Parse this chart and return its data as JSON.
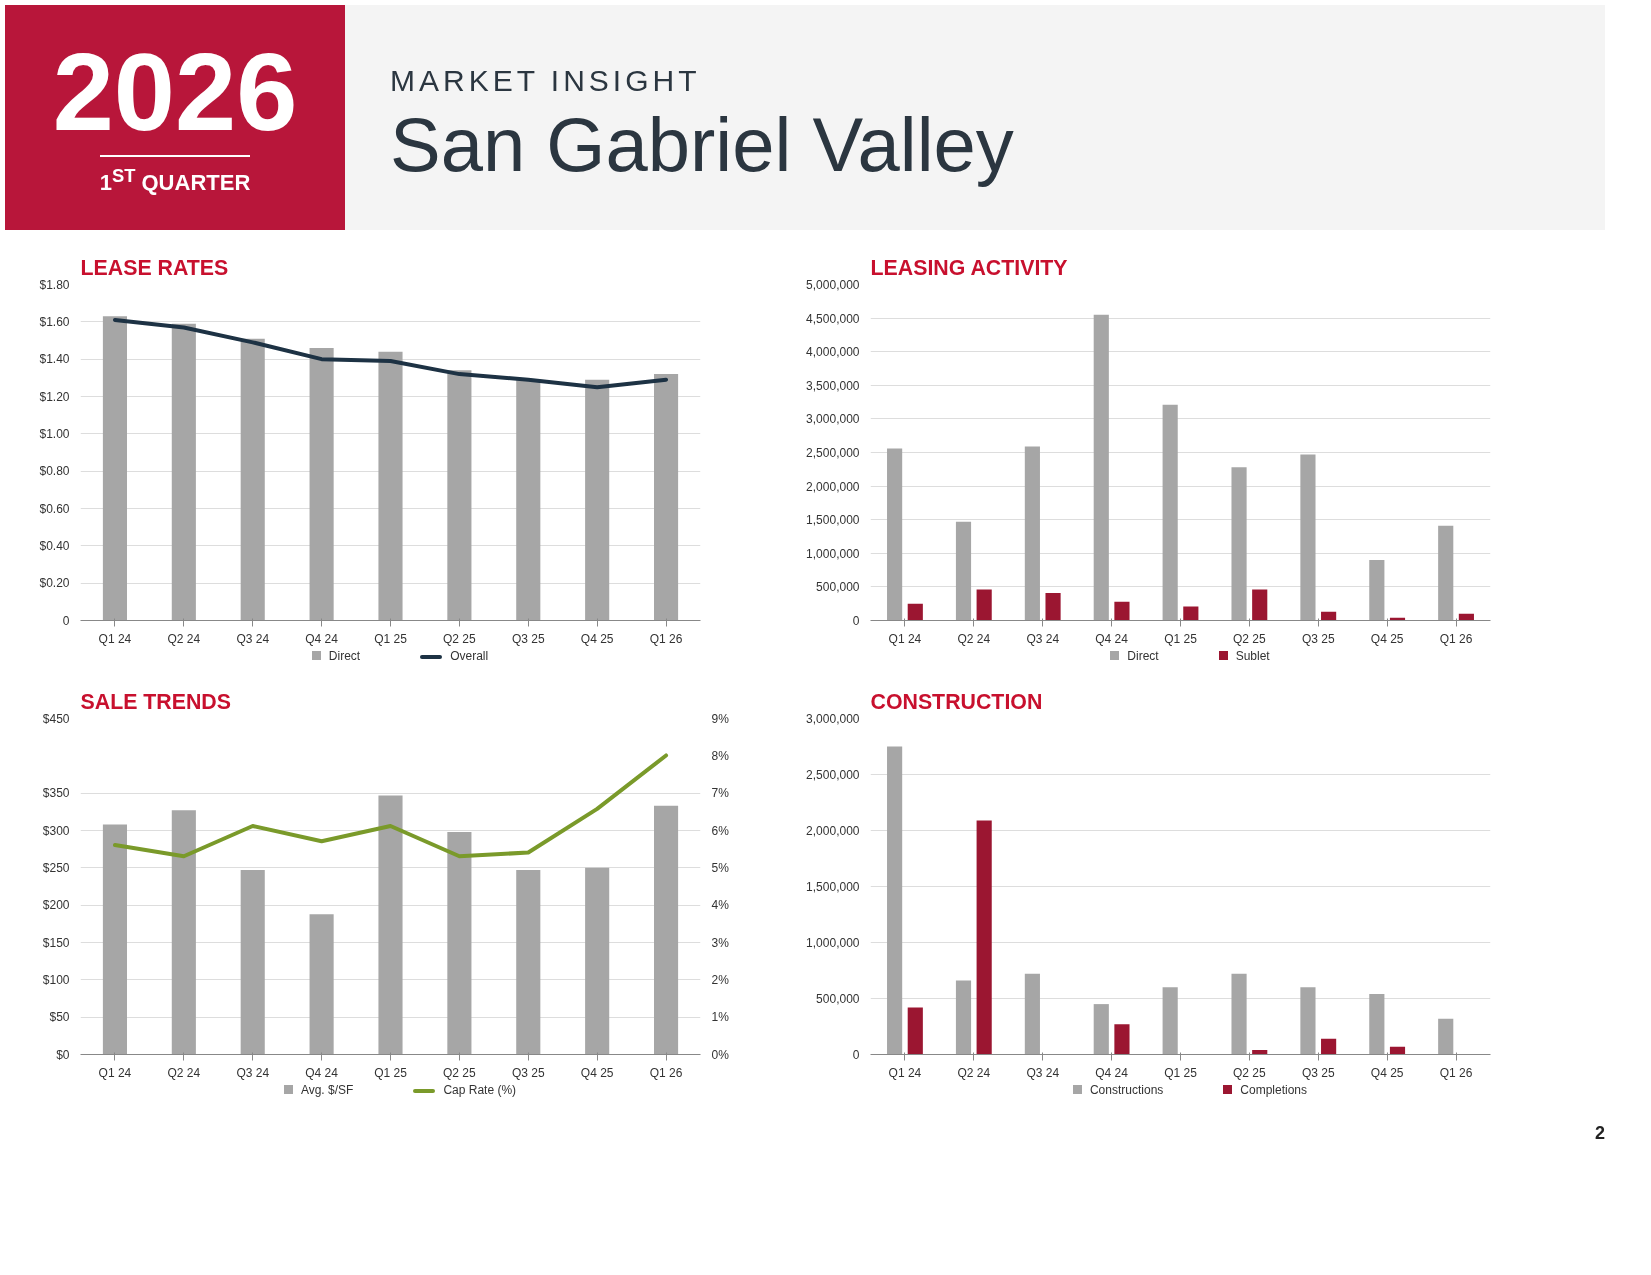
{
  "chart_data": [
    {
      "type": "other",
      "subtitle": "MARKET INSIGHT",
      "title": "San Gabriel Valley",
      "annotations": [
        "2026",
        "1$^{ST}$ QUARTER",
        "2"
      ]
    },
    {
      "type": "bar",
      "title": "LEASE RATES",
      "categories": [
        "Q1 24",
        "Q2 24",
        "Q3 24",
        "Q4 24",
        "Q1 25",
        "Q2 25",
        "Q3 25",
        "Q4 25",
        "Q1 26"
      ],
      "series": [
        {
          "name": "Direct",
          "type": "bar",
          "color": "#a6a6a6",
          "values": [
            1.63,
            1.59,
            1.51,
            1.46,
            1.44,
            1.34,
            1.29,
            1.29,
            1.32
          ]
        },
        {
          "name": "Overall",
          "type": "line",
          "color": "#1d3244",
          "values": [
            1.61,
            1.57,
            1.49,
            1.4,
            1.39,
            1.32,
            1.29,
            1.25,
            1.29
          ]
        }
      ],
      "ylim": [
        0,
        1.8
      ],
      "yticks": [
        {
          "value": 0,
          "label": "0"
        },
        {
          "value": 0.2,
          "label": "$0.20"
        },
        {
          "value": 0.4,
          "label": "$0.40"
        },
        {
          "value": 0.6,
          "label": "$0.60"
        },
        {
          "value": 0.8,
          "label": "$0.80"
        },
        {
          "value": 1.0,
          "label": "$1.00"
        },
        {
          "value": 1.2,
          "label": "$1.20"
        },
        {
          "value": 1.4,
          "label": "$1.40"
        },
        {
          "value": 1.6,
          "label": "$1.60"
        },
        {
          "value": 1.8,
          "label": "$1.80"
        }
      ],
      "grid": "y",
      "legend": "bottom"
    },
    {
      "type": "bar",
      "title": "LEASING ACTIVITY",
      "categories": [
        "Q1 24",
        "Q2 24",
        "Q3 24",
        "Q4 24",
        "Q1 25",
        "Q2 25",
        "Q3 25",
        "Q4 25",
        "Q1 26"
      ],
      "series": [
        {
          "name": "Direct",
          "color": "#a6a6a6",
          "values": [
            2560000,
            1470000,
            2590000,
            4550000,
            3210000,
            2280000,
            2470000,
            900000,
            1410000
          ]
        },
        {
          "name": "Sublet",
          "color": "#9b1631",
          "values": [
            250000,
            460000,
            410000,
            280000,
            210000,
            460000,
            130000,
            40000,
            100000
          ]
        }
      ],
      "ylim": [
        0,
        5000000
      ],
      "yticks": [
        {
          "value": 0,
          "label": "0"
        },
        {
          "value": 500000,
          "label": "500,000"
        },
        {
          "value": 1000000,
          "label": "1,000,000"
        },
        {
          "value": 1500000,
          "label": "1,500,000"
        },
        {
          "value": 2000000,
          "label": "2,000,000"
        },
        {
          "value": 2500000,
          "label": "2,500,000"
        },
        {
          "value": 3000000,
          "label": "3,000,000"
        },
        {
          "value": 3500000,
          "label": "3,500,000"
        },
        {
          "value": 4000000,
          "label": "4,000,000"
        },
        {
          "value": 4500000,
          "label": "4,500,000"
        },
        {
          "value": 5000000,
          "label": "5,000,000"
        }
      ],
      "grid": "y",
      "legend": "bottom"
    },
    {
      "type": "bar",
      "title": "SALE TRENDS",
      "categories": [
        "Q1 24",
        "Q2 24",
        "Q3 24",
        "Q4 24",
        "Q1 25",
        "Q2 25",
        "Q3 25",
        "Q4 25",
        "Q1 26"
      ],
      "series": [
        {
          "name": "Avg. $/SF",
          "type": "bar",
          "color": "#a6a6a6",
          "values": [
            308,
            327,
            247,
            188,
            347,
            298,
            247,
            250,
            333
          ]
        },
        {
          "name": "Cap Rate (%)",
          "type": "line",
          "axis": "y2",
          "color": "#7a9a2a",
          "values": [
            5.61,
            5.31,
            6.12,
            5.71,
            6.12,
            5.31,
            5.41,
            6.58,
            8.01
          ]
        }
      ],
      "ylim": [
        0,
        450
      ],
      "yticks": [
        {
          "value": 0,
          "label": "$0"
        },
        {
          "value": 50,
          "label": "$50"
        },
        {
          "value": 100,
          "label": "$100"
        },
        {
          "value": 150,
          "label": "$150"
        },
        {
          "value": 200,
          "label": "$200"
        },
        {
          "value": 250,
          "label": "$250"
        },
        {
          "value": 300,
          "label": "$300"
        },
        {
          "value": 350,
          "label": "$350"
        },
        {
          "value": 450,
          "label": "$450"
        }
      ],
      "y2lim": [
        0,
        9
      ],
      "y2ticks": [
        {
          "value": 0,
          "label": "0%"
        },
        {
          "value": 1,
          "label": "1%"
        },
        {
          "value": 2,
          "label": "2%"
        },
        {
          "value": 3,
          "label": "3%"
        },
        {
          "value": 4,
          "label": "4%"
        },
        {
          "value": 5,
          "label": "5%"
        },
        {
          "value": 6,
          "label": "6%"
        },
        {
          "value": 7,
          "label": "7%"
        },
        {
          "value": 8,
          "label": "8%"
        },
        {
          "value": 9,
          "label": "9%"
        }
      ],
      "grid": "y",
      "legend": "bottom"
    },
    {
      "type": "bar",
      "title": "CONSTRUCTION",
      "categories": [
        "Q1 24",
        "Q2 24",
        "Q3 24",
        "Q4 24",
        "Q1 25",
        "Q2 25",
        "Q3 25",
        "Q4 25",
        "Q1 26"
      ],
      "series": [
        {
          "name": "Constructions",
          "color": "#a6a6a6",
          "values": [
            2750000,
            660000,
            720000,
            450000,
            600000,
            720000,
            600000,
            540000,
            320000
          ]
        },
        {
          "name": "Completions",
          "color": "#9b1631",
          "values": [
            420000,
            2090000,
            null,
            270000,
            null,
            40000,
            140000,
            70000,
            null
          ]
        }
      ],
      "ylim": [
        0,
        3000000
      ],
      "yticks": [
        {
          "value": 0,
          "label": "0"
        },
        {
          "value": 500000,
          "label": "500,000"
        },
        {
          "value": 1000000,
          "label": "1,000,000"
        },
        {
          "value": 1500000,
          "label": "1,500,000"
        },
        {
          "value": 2000000,
          "label": "2,000,000"
        },
        {
          "value": 2500000,
          "label": "2,500,000"
        },
        {
          "value": 3000000,
          "label": "3,000,000"
        }
      ],
      "grid": "y",
      "legend": "bottom"
    }
  ]
}
